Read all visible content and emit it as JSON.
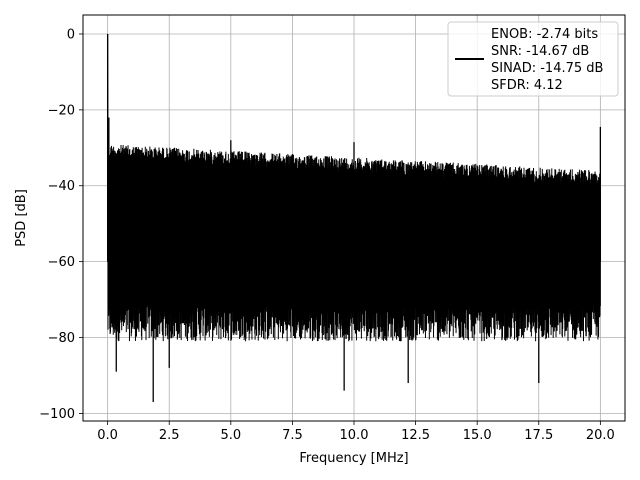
{
  "chart_data": {
    "type": "line",
    "title": "",
    "xlabel": "Frequency [MHz]",
    "ylabel": "PSD [dB]",
    "xlim": [
      -1.0,
      21.0
    ],
    "ylim": [
      -102,
      5
    ],
    "x_ticks": [
      0.0,
      2.5,
      5.0,
      7.5,
      10.0,
      12.5,
      15.0,
      17.5,
      20.0
    ],
    "x_tick_labels": [
      "0.0",
      "2.5",
      "5.0",
      "7.5",
      "10.0",
      "12.5",
      "15.0",
      "17.5",
      "20.0"
    ],
    "y_ticks": [
      0,
      -20,
      -40,
      -60,
      -80,
      -100
    ],
    "y_tick_labels": [
      "0",
      "−20",
      "−40",
      "−60",
      "−80",
      "−100"
    ],
    "grid": true,
    "legend_position": "top-right",
    "series": [
      {
        "name": "ENOB: -2.74 bits\nSNR: -14.67 dB\nSINAD: -14.75 dB\nSFDR: 4.12",
        "color": "#000000",
        "x_range": [
          0.0,
          20.0
        ],
        "noise_ceiling_start": -29,
        "noise_ceiling_end": -36,
        "noise_floor_typical": -78,
        "peaks": [
          {
            "x": 0.0,
            "y": 0
          },
          {
            "x": 0.05,
            "y": -22
          },
          {
            "x": 5.0,
            "y": -28
          },
          {
            "x": 10.0,
            "y": -28.5
          },
          {
            "x": 20.0,
            "y": -24.5
          }
        ],
        "dips": [
          {
            "x": 0.35,
            "y": -89
          },
          {
            "x": 1.85,
            "y": -97
          },
          {
            "x": 2.5,
            "y": -88
          },
          {
            "x": 9.6,
            "y": -94
          },
          {
            "x": 12.2,
            "y": -92
          },
          {
            "x": 17.5,
            "y": -92
          }
        ]
      }
    ]
  }
}
